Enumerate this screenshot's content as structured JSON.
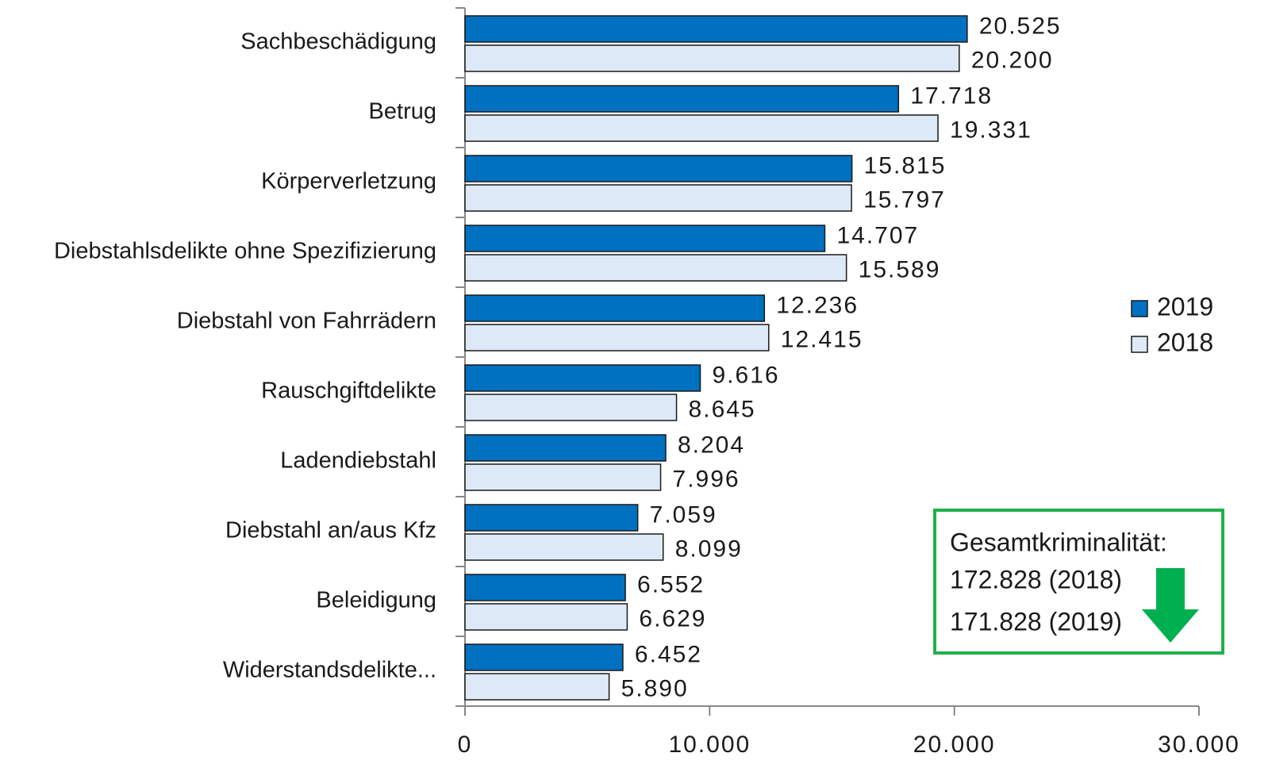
{
  "chart_data": {
    "type": "bar",
    "orientation": "horizontal",
    "categories": [
      "Sachbeschädigung",
      "Betrug",
      "Körperverletzung",
      "Diebstahlsdelikte ohne Spezifizierung",
      "Diebstahl von Fahrrädern",
      "Rauschgiftdelikte",
      "Ladendiebstahl",
      "Diebstahl an/aus Kfz",
      "Beleidigung",
      "Widerstandsdelikte..."
    ],
    "series": [
      {
        "name": "2019",
        "color": "#0070c0",
        "values": [
          20525,
          17718,
          15815,
          14707,
          12236,
          9616,
          8204,
          7059,
          6552,
          6452
        ],
        "value_labels": [
          "20.525",
          "17.718",
          "15.815",
          "14.707",
          "12.236",
          "9.616",
          "8.204",
          "7.059",
          "6.552",
          "6.452"
        ]
      },
      {
        "name": "2018",
        "color": "#dde9f6",
        "values": [
          20200,
          19331,
          15797,
          15589,
          12415,
          8645,
          7996,
          8099,
          6629,
          5890
        ],
        "value_labels": [
          "20.200",
          "19.331",
          "15.797",
          "15.589",
          "12.415",
          "8.645",
          "7.996",
          "8.099",
          "6.629",
          "5.890"
        ]
      }
    ],
    "xlim": [
      0,
      30000
    ],
    "xticks": [
      0,
      {
        "value": 10000,
        "label": "10.000"
      },
      {
        "value": 20000,
        "label": "20.000"
      },
      {
        "value": 30000,
        "label": "30.000"
      }
    ],
    "legend": "right",
    "annotations": [
      "Gesamtkriminalität:",
      "172.828 (2018)",
      "171.828 (2019)"
    ]
  }
}
